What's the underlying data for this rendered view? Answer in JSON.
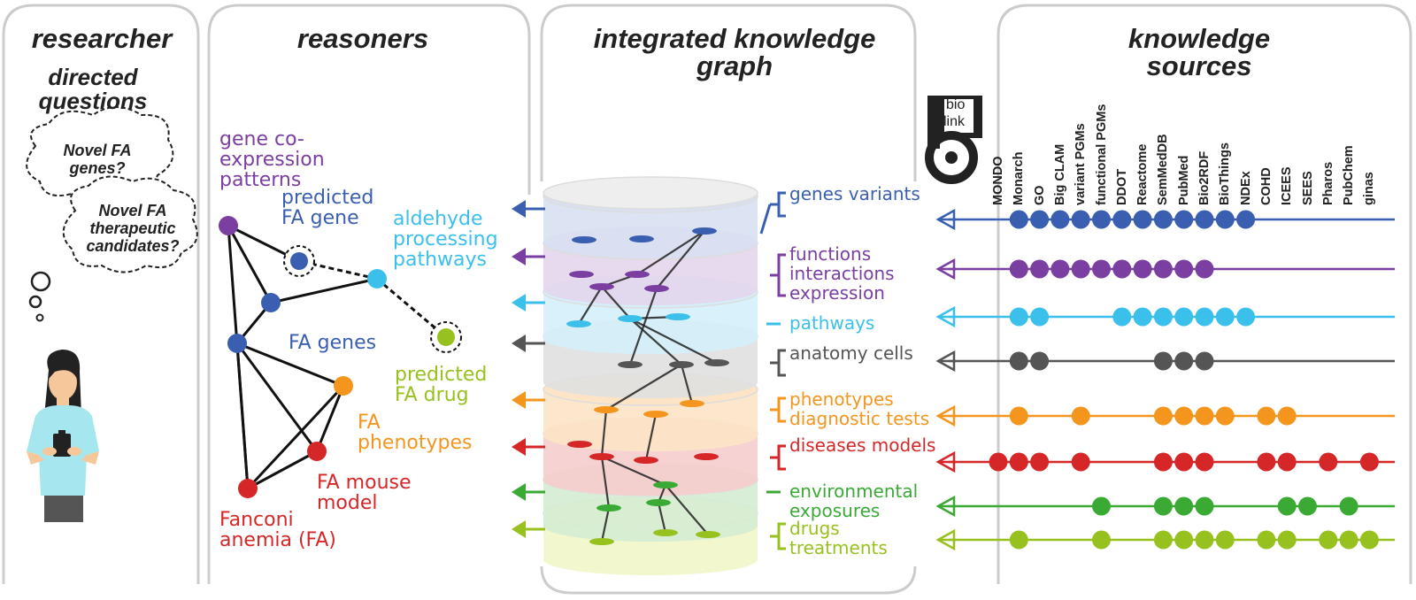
{
  "panels": {
    "researcher": "researcher",
    "reasoners": "reasoners",
    "kg": "integrated knowledge graph",
    "sources": "knowledge sources"
  },
  "researcher": {
    "subtitle": "directed questions",
    "question1": "Novel FA genes?",
    "question2": "Novel FA therapeutic candidates?"
  },
  "reasoners": {
    "coexpression": "gene co-expression patterns",
    "predicted_gene": "predicted FA gene",
    "aldehyde": "aldehyde processing pathways",
    "fa_genes": "FA genes",
    "predicted_drug": "predicted FA drug",
    "phenotypes": "FA phenotypes",
    "mouse": "FA mouse model",
    "fanconi": "Fanconi anemia (FA)"
  },
  "biolink_logo": "bio link",
  "layers": [
    {
      "label": "genes variants",
      "color": "#3a5fb0"
    },
    {
      "label": "functions interactions expression",
      "color": "#7a3fa0"
    },
    {
      "label": "pathways",
      "color": "#3bc0ec"
    },
    {
      "label": "anatomy cells",
      "color": "#555555"
    },
    {
      "label": "phenotypes diagnostic tests",
      "color": "#f4951d"
    },
    {
      "label": "diseases models",
      "color": "#d62728"
    },
    {
      "label": "environmental exposures",
      "color": "#3aaa35"
    },
    {
      "label": "drugs treatments",
      "color": "#97c11f"
    }
  ],
  "sources": [
    "MONDO",
    "Monarch",
    "GO",
    "Big CLAM",
    "variant PGMs",
    "functional PGMs",
    "DDOT",
    "Reactome",
    "SemMedDB",
    "PubMed",
    "Bio2RDF",
    "BioThings",
    "NDEx",
    "COHD",
    "ICEES",
    "SEES",
    "Pharos",
    "PubChem",
    "ginas"
  ],
  "source_matrix": [
    [
      1,
      2,
      3,
      4,
      5,
      6,
      7,
      8,
      9,
      10,
      11,
      12
    ],
    [
      1,
      2,
      3,
      4,
      5,
      6,
      7,
      8,
      9,
      10
    ],
    [
      1,
      2,
      6,
      7,
      8,
      9,
      10,
      11,
      12
    ],
    [
      1,
      2,
      8,
      9,
      10
    ],
    [
      1,
      4,
      8,
      9,
      10,
      11,
      13,
      14
    ],
    [
      0,
      1,
      2,
      4,
      8,
      9,
      10,
      13,
      14,
      16,
      18
    ],
    [
      5,
      8,
      9,
      10,
      14,
      15,
      17
    ],
    [
      1,
      5,
      8,
      9,
      10,
      11,
      13,
      14,
      16,
      17,
      18
    ]
  ]
}
